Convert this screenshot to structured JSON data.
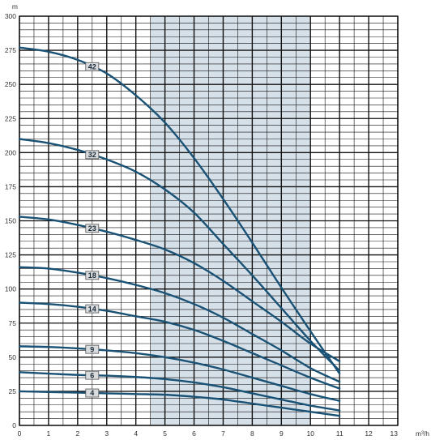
{
  "chart_data": {
    "type": "line",
    "title": "",
    "xlabel": "m³/h",
    "ylabel": "m",
    "xlim": [
      0,
      13
    ],
    "ylim": [
      0,
      300
    ],
    "x_ticks": [
      "0",
      "1",
      "2",
      "3",
      "4",
      "5",
      "6",
      "7",
      "8",
      "9",
      "10",
      "11",
      "12",
      "13"
    ],
    "y_ticks": [
      "0",
      "25",
      "50",
      "75",
      "100",
      "125",
      "150",
      "175",
      "200",
      "225",
      "250",
      "275",
      "300"
    ],
    "shaded_region": [
      4.5,
      10
    ],
    "grid": true,
    "colors": {
      "curve": "#1a5276",
      "grid": "#111111",
      "shade": "#d6e0e8",
      "label_box": "#d9dcdf"
    },
    "series": [
      {
        "name": "42",
        "label_x": 2.5,
        "x": [
          0,
          1,
          2,
          3,
          4,
          5,
          6,
          7,
          8,
          9,
          10,
          11
        ],
        "values": [
          277,
          274,
          268,
          258,
          242,
          222,
          196,
          166,
          134,
          101,
          69,
          38
        ]
      },
      {
        "name": "32",
        "label_x": 2.5,
        "x": [
          0,
          1,
          2,
          3,
          4,
          5,
          6,
          7,
          8,
          9,
          10,
          11
        ],
        "values": [
          210,
          207,
          202,
          195,
          186,
          173,
          156,
          133,
          110,
          86,
          62,
          40
        ]
      },
      {
        "name": "23",
        "label_x": 2.5,
        "x": [
          0,
          1,
          2,
          3,
          4,
          5,
          6,
          7,
          8,
          9,
          10,
          11
        ],
        "values": [
          153,
          151,
          147,
          142,
          136,
          129,
          119,
          106,
          91,
          76,
          60,
          47
        ]
      },
      {
        "name": "18",
        "label_x": 2.5,
        "x": [
          0,
          1,
          2,
          3,
          4,
          5,
          6,
          7,
          8,
          9,
          10,
          11
        ],
        "values": [
          116,
          115,
          112,
          108,
          103,
          97,
          89,
          79,
          67,
          55,
          42,
          32
        ]
      },
      {
        "name": "14",
        "label_x": 2.5,
        "x": [
          0,
          1,
          2,
          3,
          4,
          5,
          6,
          7,
          8,
          9,
          10,
          11
        ],
        "values": [
          90,
          89,
          87,
          84,
          80,
          76,
          70,
          62,
          53,
          44,
          35,
          27
        ]
      },
      {
        "name": "9",
        "label_x": 2.5,
        "x": [
          0,
          1,
          2,
          3,
          4,
          5,
          6,
          7,
          8,
          9,
          10,
          11
        ],
        "values": [
          58,
          57.5,
          56.5,
          55,
          53,
          50,
          46,
          41,
          35,
          29,
          23,
          18
        ]
      },
      {
        "name": "6",
        "label_x": 2.5,
        "x": [
          0,
          1,
          2,
          3,
          4,
          5,
          6,
          7,
          8,
          9,
          10,
          11
        ],
        "values": [
          39,
          38,
          37,
          36.5,
          35.5,
          34,
          31.5,
          28,
          23.5,
          19,
          14.5,
          11
        ]
      },
      {
        "name": "4",
        "label_x": 2.5,
        "x": [
          0,
          1,
          2,
          3,
          4,
          5,
          6,
          7,
          8,
          9,
          10,
          11
        ],
        "values": [
          25,
          24.5,
          24,
          23.5,
          23,
          22.5,
          21,
          19,
          16,
          13,
          10,
          7
        ]
      }
    ]
  }
}
